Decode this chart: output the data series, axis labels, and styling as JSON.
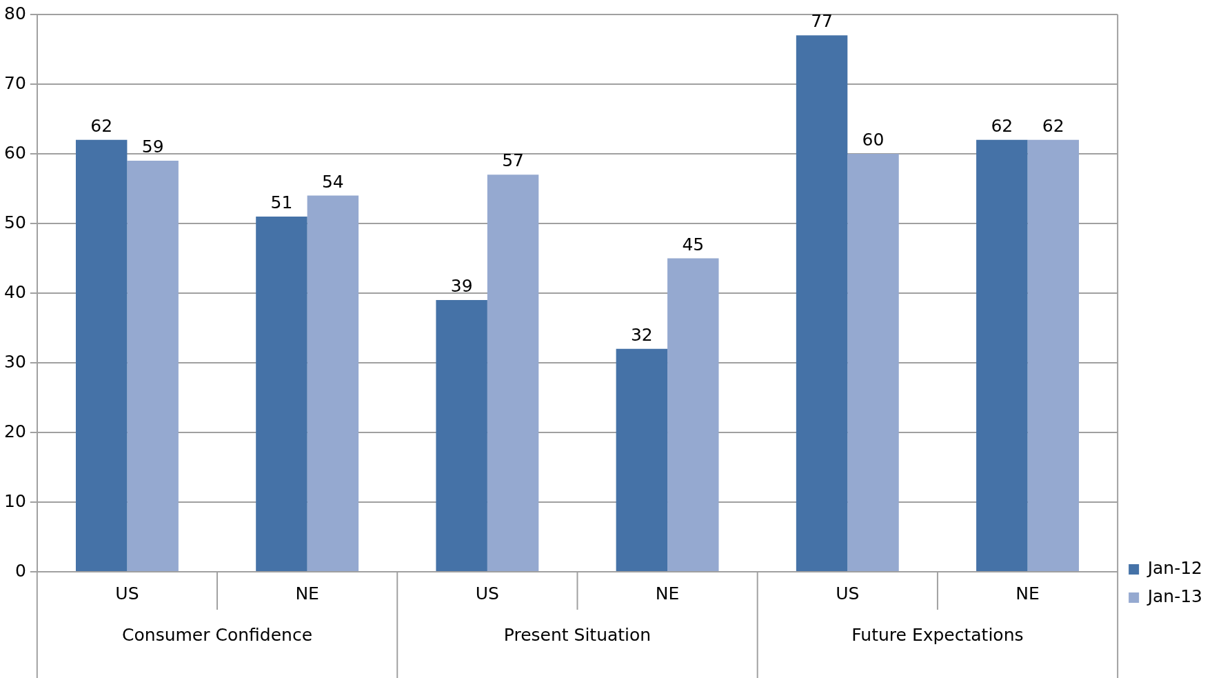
{
  "chart_data": {
    "type": "bar",
    "categories": [
      "US",
      "NE",
      "US",
      "NE",
      "US",
      "NE"
    ],
    "annotations": [
      "Consumer Confidence",
      "Present Situation",
      "Future Expectations"
    ],
    "series": [
      {
        "name": "Jan-12",
        "color": "#4572a7",
        "values": [
          62,
          51,
          39,
          32,
          77,
          62
        ]
      },
      {
        "name": "Jan-13",
        "color": "#95a9d0",
        "values": [
          59,
          54,
          57,
          45,
          60,
          62
        ]
      }
    ],
    "ylim": [
      0,
      80
    ],
    "yticks": [
      0,
      10,
      20,
      30,
      40,
      50,
      60,
      70,
      80
    ],
    "grid": "y",
    "legend": "right",
    "data_labels": true
  }
}
